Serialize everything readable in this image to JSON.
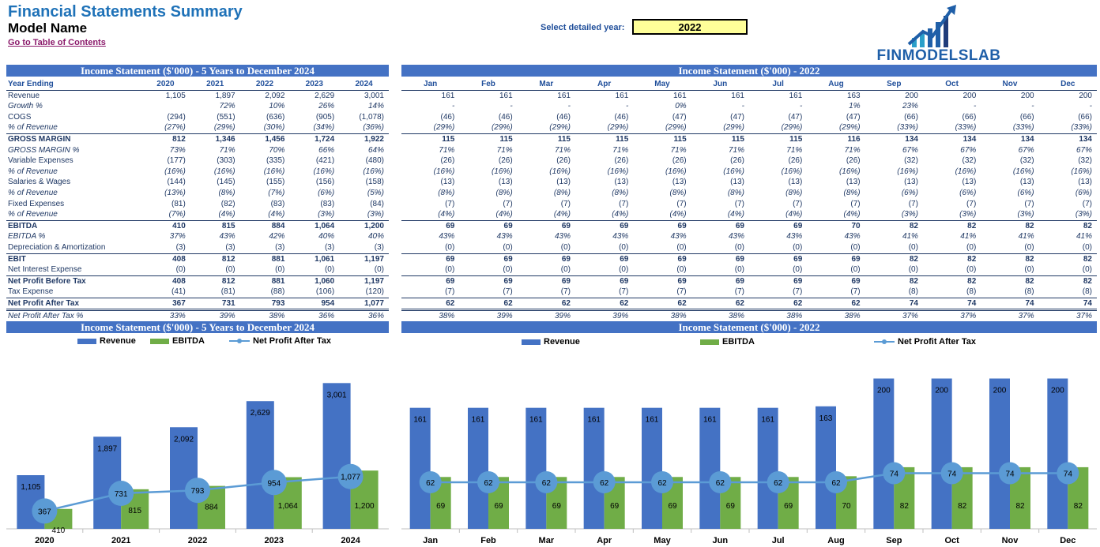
{
  "header": {
    "title": "Financial Statements Summary",
    "model_name": "Model Name",
    "toc_link": "Go to Table of Contents",
    "year_select_label": "Select detailed year:",
    "year_select_value": "2022",
    "logo_text": "FINMODELSLAB"
  },
  "bands": {
    "left_table": "Income Statement ($'000) - 5 Years to December 2024",
    "right_table": "Income Statement ($'000) - 2022",
    "left_chart": "Income Statement ($'000) - 5 Years to December 2024",
    "right_chart": "Income Statement ($'000) - 2022"
  },
  "annual_table": {
    "header": [
      "Year Ending",
      "2020",
      "2021",
      "2022",
      "2023",
      "2024"
    ],
    "rows": [
      {
        "label": "Revenue",
        "style": "normal",
        "values": [
          "1,105",
          "1,897",
          "2,092",
          "2,629",
          "3,001"
        ]
      },
      {
        "label": "Growth %",
        "style": "ital",
        "values": [
          "",
          "72%",
          "10%",
          "26%",
          "14%"
        ]
      },
      {
        "label": "COGS",
        "style": "normal",
        "values": [
          "(294)",
          "(551)",
          "(636)",
          "(905)",
          "(1,078)"
        ]
      },
      {
        "label": "% of Revenue",
        "style": "ital",
        "values": [
          "(27%)",
          "(29%)",
          "(30%)",
          "(34%)",
          "(36%)"
        ]
      },
      {
        "label": "GROSS MARGIN",
        "style": "bold",
        "values": [
          "812",
          "1,346",
          "1,456",
          "1,724",
          "1,922"
        ]
      },
      {
        "label": "GROSS MARGIN %",
        "style": "ital",
        "values": [
          "73%",
          "71%",
          "70%",
          "66%",
          "64%"
        ]
      },
      {
        "label": "Variable Expenses",
        "style": "normal",
        "values": [
          "(177)",
          "(303)",
          "(335)",
          "(421)",
          "(480)"
        ]
      },
      {
        "label": "% of Revenue",
        "style": "ital",
        "values": [
          "(16%)",
          "(16%)",
          "(16%)",
          "(16%)",
          "(16%)"
        ]
      },
      {
        "label": "Salaries & Wages",
        "style": "normal",
        "values": [
          "(144)",
          "(145)",
          "(155)",
          "(156)",
          "(158)"
        ]
      },
      {
        "label": "% of Revenue",
        "style": "ital",
        "values": [
          "(13%)",
          "(8%)",
          "(7%)",
          "(6%)",
          "(5%)"
        ]
      },
      {
        "label": "Fixed Expenses",
        "style": "normal",
        "values": [
          "(81)",
          "(82)",
          "(83)",
          "(83)",
          "(84)"
        ]
      },
      {
        "label": "% of Revenue",
        "style": "ital",
        "values": [
          "(7%)",
          "(4%)",
          "(4%)",
          "(3%)",
          "(3%)"
        ]
      },
      {
        "label": "EBITDA",
        "style": "bold",
        "values": [
          "410",
          "815",
          "884",
          "1,064",
          "1,200"
        ]
      },
      {
        "label": "EBITDA %",
        "style": "ital",
        "values": [
          "37%",
          "43%",
          "42%",
          "40%",
          "40%"
        ]
      },
      {
        "label": "Depreciation & Amortization",
        "style": "normal",
        "values": [
          "(3)",
          "(3)",
          "(3)",
          "(3)",
          "(3)"
        ]
      },
      {
        "label": "EBIT",
        "style": "bold",
        "values": [
          "408",
          "812",
          "881",
          "1,061",
          "1,197"
        ]
      },
      {
        "label": "Net Interest Expense",
        "style": "normal",
        "values": [
          "(0)",
          "(0)",
          "(0)",
          "(0)",
          "(0)"
        ]
      },
      {
        "label": "Net Profit Before Tax",
        "style": "bold",
        "values": [
          "408",
          "812",
          "881",
          "1,060",
          "1,197"
        ]
      },
      {
        "label": "Tax Expense",
        "style": "normal",
        "values": [
          "(41)",
          "(81)",
          "(88)",
          "(106)",
          "(120)"
        ]
      },
      {
        "label": "Net Profit After Tax",
        "style": "bold dbl",
        "values": [
          "367",
          "731",
          "793",
          "954",
          "1,077"
        ]
      },
      {
        "label": "Net Profit After Tax %",
        "style": "ital",
        "values": [
          "33%",
          "39%",
          "38%",
          "36%",
          "36%"
        ]
      }
    ]
  },
  "monthly_table": {
    "header": [
      "Jan",
      "Feb",
      "Mar",
      "Apr",
      "May",
      "Jun",
      "Jul",
      "Aug",
      "Sep",
      "Oct",
      "Nov",
      "Dec"
    ],
    "rows": [
      {
        "style": "normal",
        "values": [
          "161",
          "161",
          "161",
          "161",
          "161",
          "161",
          "161",
          "163",
          "200",
          "200",
          "200",
          "200"
        ]
      },
      {
        "style": "ital",
        "values": [
          "-",
          "-",
          "-",
          "-",
          "0%",
          "-",
          "-",
          "1%",
          "23%",
          "-",
          "-",
          "-"
        ]
      },
      {
        "style": "normal",
        "values": [
          "(46)",
          "(46)",
          "(46)",
          "(46)",
          "(47)",
          "(47)",
          "(47)",
          "(47)",
          "(66)",
          "(66)",
          "(66)",
          "(66)"
        ]
      },
      {
        "style": "ital",
        "values": [
          "(29%)",
          "(29%)",
          "(29%)",
          "(29%)",
          "(29%)",
          "(29%)",
          "(29%)",
          "(29%)",
          "(33%)",
          "(33%)",
          "(33%)",
          "(33%)"
        ]
      },
      {
        "style": "bold",
        "values": [
          "115",
          "115",
          "115",
          "115",
          "115",
          "115",
          "115",
          "116",
          "134",
          "134",
          "134",
          "134"
        ]
      },
      {
        "style": "ital",
        "values": [
          "71%",
          "71%",
          "71%",
          "71%",
          "71%",
          "71%",
          "71%",
          "71%",
          "67%",
          "67%",
          "67%",
          "67%"
        ]
      },
      {
        "style": "normal",
        "values": [
          "(26)",
          "(26)",
          "(26)",
          "(26)",
          "(26)",
          "(26)",
          "(26)",
          "(26)",
          "(32)",
          "(32)",
          "(32)",
          "(32)"
        ]
      },
      {
        "style": "ital",
        "values": [
          "(16%)",
          "(16%)",
          "(16%)",
          "(16%)",
          "(16%)",
          "(16%)",
          "(16%)",
          "(16%)",
          "(16%)",
          "(16%)",
          "(16%)",
          "(16%)"
        ]
      },
      {
        "style": "normal",
        "values": [
          "(13)",
          "(13)",
          "(13)",
          "(13)",
          "(13)",
          "(13)",
          "(13)",
          "(13)",
          "(13)",
          "(13)",
          "(13)",
          "(13)"
        ]
      },
      {
        "style": "ital",
        "values": [
          "(8%)",
          "(8%)",
          "(8%)",
          "(8%)",
          "(8%)",
          "(8%)",
          "(8%)",
          "(8%)",
          "(6%)",
          "(6%)",
          "(6%)",
          "(6%)"
        ]
      },
      {
        "style": "normal",
        "values": [
          "(7)",
          "(7)",
          "(7)",
          "(7)",
          "(7)",
          "(7)",
          "(7)",
          "(7)",
          "(7)",
          "(7)",
          "(7)",
          "(7)"
        ]
      },
      {
        "style": "ital",
        "values": [
          "(4%)",
          "(4%)",
          "(4%)",
          "(4%)",
          "(4%)",
          "(4%)",
          "(4%)",
          "(4%)",
          "(3%)",
          "(3%)",
          "(3%)",
          "(3%)"
        ]
      },
      {
        "style": "bold",
        "values": [
          "69",
          "69",
          "69",
          "69",
          "69",
          "69",
          "69",
          "70",
          "82",
          "82",
          "82",
          "82"
        ]
      },
      {
        "style": "ital",
        "values": [
          "43%",
          "43%",
          "43%",
          "43%",
          "43%",
          "43%",
          "43%",
          "43%",
          "41%",
          "41%",
          "41%",
          "41%"
        ]
      },
      {
        "style": "normal",
        "values": [
          "(0)",
          "(0)",
          "(0)",
          "(0)",
          "(0)",
          "(0)",
          "(0)",
          "(0)",
          "(0)",
          "(0)",
          "(0)",
          "(0)"
        ]
      },
      {
        "style": "bold",
        "values": [
          "69",
          "69",
          "69",
          "69",
          "69",
          "69",
          "69",
          "69",
          "82",
          "82",
          "82",
          "82"
        ]
      },
      {
        "style": "normal",
        "values": [
          "(0)",
          "(0)",
          "(0)",
          "(0)",
          "(0)",
          "(0)",
          "(0)",
          "(0)",
          "(0)",
          "(0)",
          "(0)",
          "(0)"
        ]
      },
      {
        "style": "bold",
        "values": [
          "69",
          "69",
          "69",
          "69",
          "69",
          "69",
          "69",
          "69",
          "82",
          "82",
          "82",
          "82"
        ]
      },
      {
        "style": "normal",
        "values": [
          "(7)",
          "(7)",
          "(7)",
          "(7)",
          "(7)",
          "(7)",
          "(7)",
          "(7)",
          "(8)",
          "(8)",
          "(8)",
          "(8)"
        ]
      },
      {
        "style": "bold dbl",
        "values": [
          "62",
          "62",
          "62",
          "62",
          "62",
          "62",
          "62",
          "62",
          "74",
          "74",
          "74",
          "74"
        ]
      },
      {
        "style": "ital",
        "values": [
          "38%",
          "39%",
          "39%",
          "39%",
          "38%",
          "38%",
          "38%",
          "38%",
          "37%",
          "37%",
          "37%",
          "37%"
        ]
      }
    ]
  },
  "colors": {
    "revenue": "#4472c4",
    "ebitda": "#70ad47",
    "npat": "#5b9bd5",
    "band": "#4472c4",
    "year_box": "#ffff99"
  },
  "chart_data": [
    {
      "type": "bar",
      "categories": [
        "2020",
        "2021",
        "2022",
        "2023",
        "2024"
      ],
      "series": [
        {
          "name": "Revenue",
          "kind": "bar",
          "values": [
            1105,
            1897,
            2092,
            2629,
            3001
          ],
          "labels": [
            "1,105",
            "1,897",
            "2,092",
            "2,629",
            "3,001"
          ]
        },
        {
          "name": "EBITDA",
          "kind": "bar",
          "values": [
            410,
            815,
            884,
            1064,
            1200
          ],
          "labels": [
            "410",
            "815",
            "884",
            "1,064",
            "1,200"
          ]
        },
        {
          "name": "Net Profit After Tax",
          "kind": "line",
          "values": [
            367,
            731,
            793,
            954,
            1077
          ],
          "labels": [
            "367",
            "731",
            "793",
            "954",
            "1,077"
          ]
        }
      ],
      "legend": "top",
      "grid": false
    },
    {
      "type": "bar",
      "categories": [
        "Jan",
        "Feb",
        "Mar",
        "Apr",
        "May",
        "Jun",
        "Jul",
        "Aug",
        "Sep",
        "Oct",
        "Nov",
        "Dec"
      ],
      "series": [
        {
          "name": "Revenue",
          "kind": "bar",
          "values": [
            161,
            161,
            161,
            161,
            161,
            161,
            161,
            163,
            200,
            200,
            200,
            200
          ],
          "labels": [
            "161",
            "161",
            "161",
            "161",
            "161",
            "161",
            "161",
            "163",
            "200",
            "200",
            "200",
            "200"
          ]
        },
        {
          "name": "EBITDA",
          "kind": "bar",
          "values": [
            69,
            69,
            69,
            69,
            69,
            69,
            69,
            70,
            82,
            82,
            82,
            82
          ],
          "labels": [
            "69",
            "69",
            "69",
            "69",
            "69",
            "69",
            "69",
            "70",
            "82",
            "82",
            "82",
            "82"
          ]
        },
        {
          "name": "Net Profit After Tax",
          "kind": "line",
          "values": [
            62,
            62,
            62,
            62,
            62,
            62,
            62,
            62,
            74,
            74,
            74,
            74
          ],
          "labels": [
            "62",
            "62",
            "62",
            "62",
            "62",
            "62",
            "62",
            "62",
            "74",
            "74",
            "74",
            "74"
          ]
        }
      ],
      "legend": "top",
      "grid": false
    }
  ]
}
